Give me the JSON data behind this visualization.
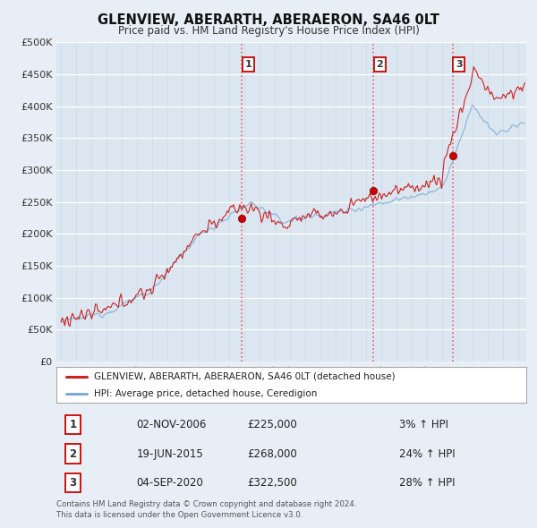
{
  "title": "GLENVIEW, ABERARTH, ABERAERON, SA46 0LT",
  "subtitle": "Price paid vs. HM Land Registry's House Price Index (HPI)",
  "ylim": [
    0,
    500000
  ],
  "yticks": [
    0,
    50000,
    100000,
    150000,
    200000,
    250000,
    300000,
    350000,
    400000,
    450000,
    500000
  ],
  "xlim_start": 1994.7,
  "xlim_end": 2025.5,
  "sale_dates": [
    2006.84,
    2015.47,
    2020.67
  ],
  "sale_prices": [
    225000,
    268000,
    322500
  ],
  "sale_labels": [
    "1",
    "2",
    "3"
  ],
  "vline_color": "#dd4444",
  "sale_dot_color": "#cc0000",
  "hpi_line_color": "#7aadd4",
  "price_line_color": "#cc2222",
  "legend_label_price": "GLENVIEW, ABERARTH, ABERAERON, SA46 0LT (detached house)",
  "legend_label_hpi": "HPI: Average price, detached house, Ceredigion",
  "table_rows": [
    [
      "1",
      "02-NOV-2006",
      "£225,000",
      "3% ↑ HPI"
    ],
    [
      "2",
      "19-JUN-2015",
      "£268,000",
      "24% ↑ HPI"
    ],
    [
      "3",
      "04-SEP-2020",
      "£322,500",
      "28% ↑ HPI"
    ]
  ],
  "footnote": "Contains HM Land Registry data © Crown copyright and database right 2024.\nThis data is licensed under the Open Government Licence v3.0.",
  "background_color": "#e8eef5",
  "plot_bg_color": "#dce6f0"
}
